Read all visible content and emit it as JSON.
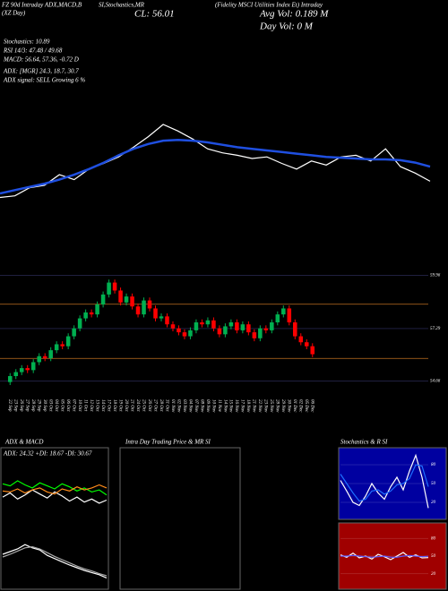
{
  "header": {
    "left_title": "FZ 90d Intraday ADX,MACD,B",
    "mid_title": "SI,Stochastics,MR",
    "right_title": "(Fidelity MSCI Utilities Index Et) Intraday",
    "sub_left": "(XZ Day)",
    "close": "CL: 56.01",
    "avg_vol": "Avg Vol: 0.189 M",
    "day_vol": "Day Vol: 0  M",
    "lines": [
      "Stochastics: 10.89",
      "RSI 14/3: 47.48 / 49.68",
      "MACD: 56.64, 57.36, -0.72  D",
      "ADX: [MGR] 24.3, 18.7, 30.7",
      "ADX signal: SELL Growing 6 %"
    ]
  },
  "panels": {
    "adx_title": "ADX  & MACD",
    "intraday_title": "Intra Day Trading Price  & MR SI",
    "stoch_title": "Stochastics & R SI",
    "adx_readout": "ADX: 24.32  +DI: 18.67  -DI: 30.67"
  },
  "chart_data": [
    {
      "type": "line",
      "ylim": [
        -0.5,
        10
      ],
      "series": [
        {
          "name": "price",
          "color": "#ffffff",
          "values": [
            0,
            0.2,
            1.2,
            1.5,
            2.8,
            2.2,
            3.5,
            4.2,
            5.0,
            6.2,
            7.5,
            9,
            8.2,
            7.2,
            6.0,
            5.5,
            5.2,
            4.8,
            5.0,
            4.2,
            3.5,
            4.5,
            4.0,
            5.0,
            5.2,
            4.5,
            6.0,
            3.8,
            3.0,
            2.0
          ]
        },
        {
          "name": "average",
          "color": "#1f4fe0",
          "values": [
            0.5,
            0.9,
            1.3,
            1.7,
            2.2,
            2.8,
            3.5,
            4.3,
            5.2,
            6.0,
            6.6,
            7.0,
            7.1,
            7.0,
            6.8,
            6.5,
            6.2,
            6.0,
            5.8,
            5.6,
            5.4,
            5.2,
            5.0,
            4.9,
            4.8,
            4.7,
            4.7,
            4.6,
            4.3,
            3.8
          ]
        }
      ]
    },
    {
      "type": "candlestick",
      "ylim": [
        54.0,
        60.3
      ],
      "yticks": [
        54.66,
        57.29,
        59.96
      ],
      "levels": [
        58.51,
        55.79
      ],
      "up_color": "#00b050",
      "down_color": "#ff0000",
      "categories": [
        "22 Sep",
        "23 Sep",
        "26 Sep",
        "27 Sep",
        "28 Sep",
        "29 Sep",
        "30 Sep",
        "03 Oct",
        "04 Oct",
        "05 Oct",
        "06 Oct",
        "07 Oct",
        "10 Oct",
        "11 Oct",
        "12 Oct",
        "13 Oct",
        "14 Oct",
        "17 Oct",
        "18 Oct",
        "19 Oct",
        "20 Oct",
        "21 Oct",
        "24 Oct",
        "25 Oct",
        "26 Oct",
        "27 Oct",
        "28 Oct",
        "31 Oct",
        "01 Nov",
        "02 Nov",
        "03 Nov",
        "04 Nov",
        "07 Nov",
        "08 Nov",
        "09 Nov",
        "10 Nov",
        "11 Nov",
        "14 Nov",
        "15 Nov",
        "16 Nov",
        "17 Nov",
        "18 Nov",
        "21 Nov",
        "22 Nov",
        "23 Nov",
        "25 Nov",
        "28 Nov",
        "29 Nov",
        "30 Nov",
        "01 Dec",
        "02 Dec",
        "05 Dec",
        "06 Dec"
      ],
      "open": [
        54.6,
        54.9,
        55.1,
        55.3,
        55.2,
        55.6,
        55.9,
        55.8,
        56.2,
        56.5,
        56.4,
        56.9,
        57.3,
        57.8,
        58.1,
        58.0,
        58.5,
        59.0,
        59.6,
        59.2,
        58.6,
        58.9,
        58.4,
        58.0,
        58.7,
        58.3,
        57.8,
        57.9,
        57.5,
        57.3,
        57.1,
        56.9,
        57.2,
        57.6,
        57.5,
        57.7,
        57.3,
        57.0,
        57.4,
        57.6,
        57.2,
        57.5,
        57.1,
        56.8,
        57.3,
        57.2,
        57.6,
        58.0,
        58.3,
        57.6,
        56.9,
        56.6,
        56.4
      ],
      "high": [
        55.05,
        55.25,
        55.45,
        55.45,
        55.75,
        56.05,
        56.05,
        56.35,
        56.65,
        56.65,
        57.05,
        57.45,
        57.95,
        58.25,
        58.25,
        58.65,
        59.15,
        59.75,
        59.75,
        59.35,
        59.05,
        59.05,
        58.55,
        58.85,
        58.85,
        58.45,
        58.05,
        58.05,
        57.65,
        57.45,
        57.25,
        57.35,
        57.75,
        57.75,
        57.85,
        57.85,
        57.45,
        57.55,
        57.75,
        57.75,
        57.65,
        57.65,
        57.25,
        57.45,
        57.45,
        57.75,
        58.15,
        58.45,
        58.45,
        57.75,
        57.05,
        56.75,
        56.55
      ],
      "low": [
        54.45,
        54.75,
        54.95,
        55.05,
        55.05,
        55.45,
        55.65,
        55.65,
        56.05,
        56.25,
        56.25,
        56.75,
        57.15,
        57.65,
        57.85,
        57.85,
        58.35,
        58.85,
        59.05,
        58.45,
        58.45,
        58.25,
        57.85,
        57.85,
        58.15,
        57.65,
        57.65,
        57.35,
        57.15,
        56.95,
        56.75,
        56.75,
        57.05,
        57.35,
        57.35,
        57.15,
        56.85,
        56.85,
        57.25,
        57.05,
        57.05,
        56.95,
        56.65,
        56.65,
        57.05,
        57.05,
        57.45,
        57.85,
        57.45,
        56.75,
        56.45,
        56.25,
        55.85
      ],
      "close": [
        54.9,
        55.1,
        55.3,
        55.2,
        55.6,
        55.9,
        55.8,
        56.2,
        56.5,
        56.4,
        56.9,
        57.3,
        57.8,
        58.1,
        58.0,
        58.5,
        59.0,
        59.6,
        59.2,
        58.6,
        58.9,
        58.4,
        58.0,
        58.7,
        58.3,
        57.8,
        57.9,
        57.5,
        57.3,
        57.1,
        56.9,
        57.2,
        57.6,
        57.5,
        57.7,
        57.3,
        57.0,
        57.4,
        57.6,
        57.2,
        57.5,
        57.1,
        56.8,
        57.3,
        57.2,
        57.6,
        58.0,
        58.3,
        57.6,
        56.9,
        56.6,
        56.4,
        56.0
      ]
    },
    {
      "type": "line",
      "ylim": [
        0,
        60
      ],
      "series": [
        {
          "name": "ADX",
          "color": "#00ff00",
          "values": [
            35,
            33,
            38,
            34,
            31,
            36,
            33,
            30,
            35,
            32,
            28,
            31,
            27,
            29,
            24
          ]
        },
        {
          "name": "+DI",
          "color": "#ffffff",
          "values": [
            22,
            26,
            20,
            24,
            29,
            25,
            21,
            27,
            23,
            18,
            22,
            17,
            20,
            16,
            19
          ]
        },
        {
          "name": "-DI",
          "color": "#ff8c1a",
          "values": [
            28,
            27,
            30,
            26,
            29,
            31,
            27,
            25,
            30,
            28,
            32,
            29,
            31,
            34,
            31
          ]
        }
      ]
    },
    {
      "type": "line",
      "ylim": [
        0,
        10
      ],
      "series": [
        {
          "name": "MACD",
          "color": "#ffffff",
          "values": [
            6.0,
            6.5,
            7.0,
            7.8,
            7.2,
            6.8,
            5.8,
            5.2,
            4.6,
            4.0,
            3.5,
            3.0,
            2.6,
            2.2,
            1.6
          ]
        },
        {
          "name": "signal",
          "color": "#aaaaaa",
          "values": [
            5.5,
            6.0,
            6.6,
            7.2,
            7.4,
            7.0,
            6.3,
            5.6,
            5.0,
            4.4,
            3.8,
            3.3,
            2.9,
            2.4,
            2.0
          ]
        }
      ]
    },
    {
      "type": "line",
      "ylim": [
        0,
        100
      ],
      "yticks": [
        20,
        50,
        80
      ],
      "series": [
        {
          "name": "%K",
          "color": "#ffffff",
          "values": [
            55,
            38,
            20,
            15,
            30,
            50,
            35,
            25,
            45,
            60,
            40,
            70,
            95,
            60,
            10.89
          ]
        },
        {
          "name": "%D",
          "color": "#1e6fff",
          "values": [
            65,
            50,
            35,
            22,
            25,
            38,
            40,
            33,
            38,
            48,
            50,
            58,
            80,
            78,
            45
          ]
        }
      ]
    },
    {
      "type": "line",
      "ylim": [
        0,
        100
      ],
      "yticks": [
        20,
        50,
        80
      ],
      "series": [
        {
          "name": "RSI",
          "color": "#ffffff",
          "values": [
            52,
            48,
            55,
            47,
            50,
            45,
            53,
            49,
            44,
            50,
            56,
            48,
            52,
            47,
            47.48
          ]
        },
        {
          "name": "RSI avg",
          "color": "#5a5aff",
          "values": [
            50,
            50,
            51,
            50,
            49,
            48,
            49,
            50,
            48,
            48,
            50,
            51,
            50,
            49,
            49.68
          ]
        }
      ]
    }
  ]
}
